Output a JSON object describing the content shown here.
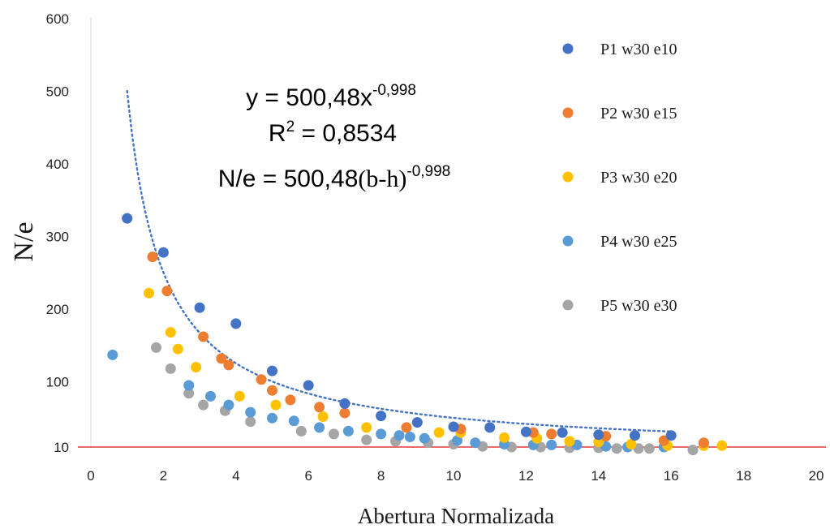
{
  "chart_data": {
    "type": "scatter",
    "title": "",
    "xlabel": "Abertura Normalizada",
    "ylabel": "N/e",
    "xlim": [
      0,
      20
    ],
    "ylim": [
      0,
      600
    ],
    "xticks": [
      "0",
      "2",
      "4",
      "6",
      "8",
      "10",
      "12",
      "14",
      "16",
      "18",
      "20"
    ],
    "yticks": [
      {
        "value": 10,
        "label": "10"
      },
      {
        "value": 100,
        "label": "100"
      },
      {
        "value": 200,
        "label": "200"
      },
      {
        "value": 300,
        "label": "300"
      },
      {
        "value": 400,
        "label": "400"
      },
      {
        "value": 500,
        "label": "500"
      },
      {
        "value": 600,
        "label": "600"
      }
    ],
    "grid": false,
    "legend_position": "right",
    "reference_line": {
      "y": 10,
      "color": "#e83a3a"
    },
    "trendline": {
      "type": "power",
      "a": 500.48,
      "b": -0.998,
      "x_range": [
        1,
        16
      ],
      "color": "#4472c4",
      "style": "dotted"
    },
    "annotations": {
      "eq1_main": "y = 500,48x",
      "eq1_exp": "-0,998",
      "eq2_main": "R",
      "eq2_sup": "2",
      "eq2_rest": " = 0,8534",
      "eq3_main": "N/e = 500,48",
      "eq3_paren": "(b-h)",
      "eq3_exp": "-0,998"
    },
    "series": [
      {
        "name": "P1 w30 e10",
        "color": "#4472c4",
        "points": [
          [
            1.0,
            325
          ],
          [
            2.0,
            278
          ],
          [
            3.0,
            202
          ],
          [
            4.0,
            180
          ],
          [
            5.0,
            115
          ],
          [
            6.0,
            95
          ],
          [
            7.0,
            70
          ],
          [
            8.0,
            53
          ],
          [
            9.0,
            44
          ],
          [
            10.0,
            38
          ],
          [
            11.0,
            37
          ],
          [
            12.0,
            31
          ],
          [
            13.0,
            30
          ],
          [
            14.0,
            27
          ],
          [
            15.0,
            26
          ],
          [
            16.0,
            26
          ]
        ]
      },
      {
        "name": "P2 w30 e15",
        "color": "#ed7d31",
        "points": [
          [
            1.7,
            272
          ],
          [
            2.1,
            225
          ],
          [
            3.1,
            162
          ],
          [
            3.6,
            132
          ],
          [
            3.8,
            123
          ],
          [
            4.7,
            103
          ],
          [
            5.0,
            88
          ],
          [
            5.5,
            75
          ],
          [
            6.3,
            65
          ],
          [
            7.0,
            57
          ],
          [
            8.7,
            37
          ],
          [
            10.2,
            35
          ],
          [
            12.2,
            30
          ],
          [
            12.7,
            28
          ],
          [
            14.2,
            25
          ],
          [
            15.8,
            19
          ],
          [
            16.9,
            16
          ]
        ]
      },
      {
        "name": "P3 w30 e20",
        "color": "#ffc000",
        "points": [
          [
            1.6,
            222
          ],
          [
            2.2,
            168
          ],
          [
            2.4,
            145
          ],
          [
            2.9,
            120
          ],
          [
            4.1,
            80
          ],
          [
            5.1,
            68
          ],
          [
            6.4,
            52
          ],
          [
            7.6,
            37
          ],
          [
            9.6,
            30
          ],
          [
            10.2,
            30
          ],
          [
            11.4,
            23
          ],
          [
            12.3,
            22
          ],
          [
            13.2,
            18
          ],
          [
            14.0,
            17
          ],
          [
            14.9,
            14
          ],
          [
            15.9,
            12
          ],
          [
            16.9,
            12
          ],
          [
            17.4,
            12
          ]
        ]
      },
      {
        "name": "P4 w30 e25",
        "color": "#5b9bd5",
        "points": [
          [
            0.6,
            137
          ],
          [
            2.7,
            95
          ],
          [
            3.3,
            80
          ],
          [
            3.8,
            68
          ],
          [
            4.4,
            58
          ],
          [
            5.0,
            50
          ],
          [
            5.6,
            46
          ],
          [
            6.3,
            37
          ],
          [
            7.1,
            32
          ],
          [
            8.0,
            28
          ],
          [
            8.5,
            26
          ],
          [
            8.8,
            24
          ],
          [
            9.2,
            22
          ],
          [
            10.1,
            19
          ],
          [
            10.6,
            16
          ],
          [
            11.4,
            14
          ],
          [
            12.2,
            13
          ],
          [
            12.7,
            13
          ],
          [
            13.4,
            13
          ],
          [
            14.2,
            11
          ],
          [
            14.8,
            10
          ],
          [
            15.8,
            10
          ]
        ]
      },
      {
        "name": "P5 w30 e30",
        "color": "#a5a5a5",
        "points": [
          [
            1.8,
            147
          ],
          [
            2.2,
            118
          ],
          [
            2.7,
            84
          ],
          [
            3.1,
            68
          ],
          [
            3.7,
            60
          ],
          [
            4.4,
            45
          ],
          [
            5.8,
            32
          ],
          [
            6.7,
            28
          ],
          [
            7.6,
            20
          ],
          [
            8.4,
            18
          ],
          [
            9.3,
            16
          ],
          [
            10.0,
            14
          ],
          [
            10.8,
            11
          ],
          [
            11.6,
            10
          ],
          [
            12.4,
            10
          ],
          [
            13.2,
            9
          ],
          [
            14.0,
            9
          ],
          [
            14.5,
            8
          ],
          [
            15.1,
            8
          ],
          [
            15.4,
            8
          ],
          [
            16.6,
            6
          ]
        ]
      }
    ]
  }
}
